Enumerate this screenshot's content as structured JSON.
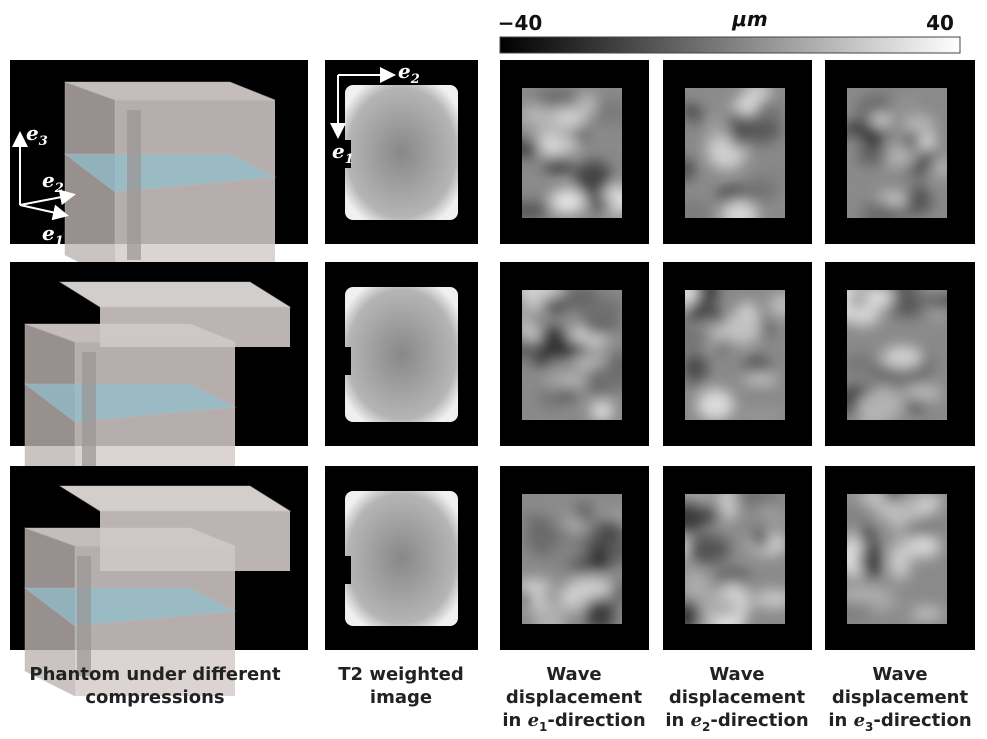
{
  "colorbar": {
    "unit": "μm",
    "ticks": [
      {
        "value": -40,
        "label": "−40"
      },
      40
    ]
  },
  "phantom_axes": [
    {
      "var": "e",
      "sub": "3"
    },
    {
      "var": "e",
      "sub": "2"
    },
    {
      "var": "e",
      "sub": "1"
    }
  ],
  "image_axes": [
    {
      "var": "e",
      "sub": "2"
    },
    {
      "var": "e",
      "sub": "1"
    }
  ],
  "captions": [
    {
      "lines": [
        "Phantom under different",
        "compressions"
      ]
    },
    {
      "lines": [
        "T2 weighted",
        "image"
      ]
    },
    {
      "lines": [
        "Wave",
        "displacement"
      ],
      "prefix": "in ",
      "var": "e",
      "sub": "1",
      "suffix": "-direction"
    },
    {
      "lines": [
        "Wave",
        "displacement"
      ],
      "prefix": "in ",
      "var": "e",
      "sub": "2",
      "suffix": "-direction"
    },
    {
      "lines": [
        "Wave",
        "displacement"
      ],
      "prefix": "in ",
      "var": "e",
      "sub": "3",
      "suffix": "-direction"
    }
  ]
}
